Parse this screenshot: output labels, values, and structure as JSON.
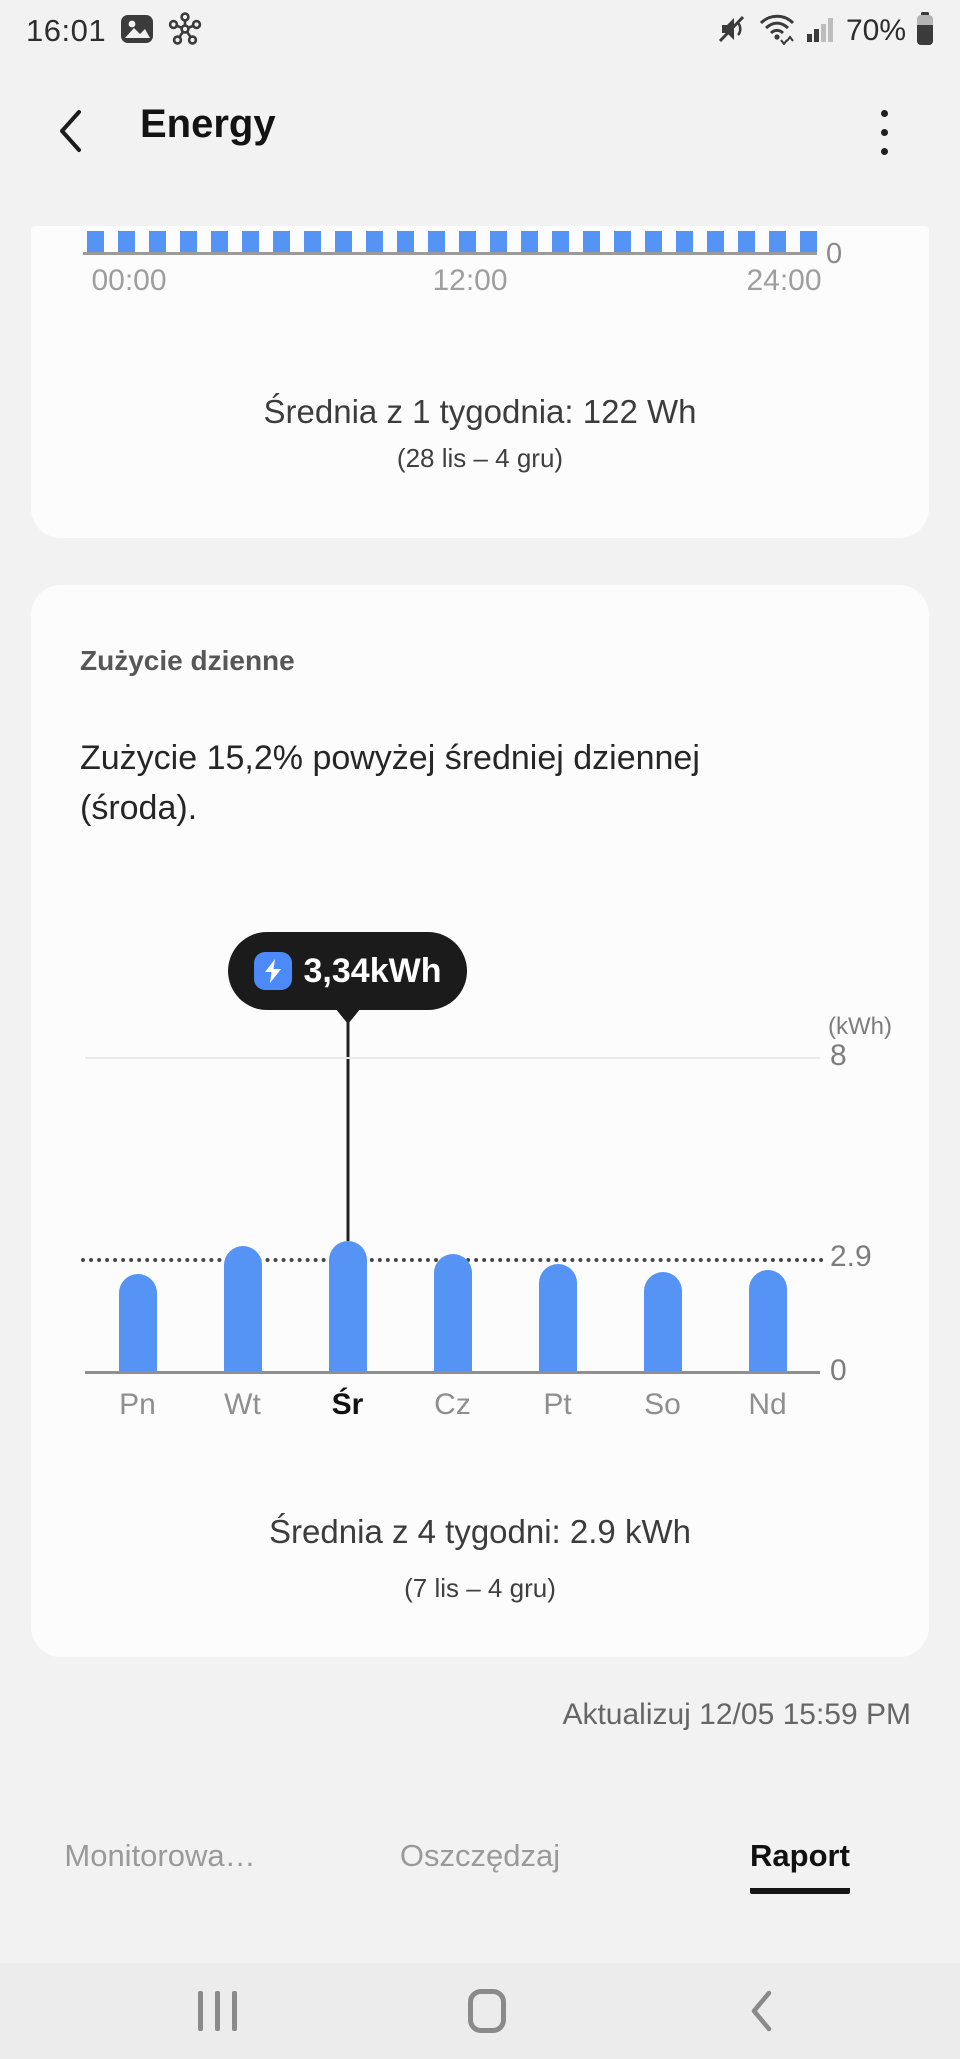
{
  "status_bar": {
    "time": "16:01",
    "battery_percent": "70%"
  },
  "header": {
    "title": "Energy"
  },
  "hourly": {
    "y_zero": "0",
    "x_ticks": [
      "00:00",
      "12:00",
      "24:00"
    ],
    "average_text": "Średnia z 1 tygodnia: 122 Wh",
    "date_range": "(28 lis – 4 gru)"
  },
  "daily": {
    "section_label": "Zużycie dzienne",
    "insight_line1": "Zużycie 15,2% powyżej średniej dziennej",
    "insight_line2": "(środa).",
    "tooltip_value": "3,34kWh",
    "y_unit": "(kWh)",
    "y_top": "8",
    "y_avg": "2.9",
    "y_zero": "0",
    "average_text": "Średnia z 4 tygodni: 2.9 kWh",
    "date_range": "(7 lis – 4 gru)"
  },
  "update_text": "Aktualizuj 12/05 15:59 PM",
  "tabs": [
    {
      "label": "Monitorowa…",
      "active": false
    },
    {
      "label": "Oszczędzaj",
      "active": false
    },
    {
      "label": "Raport",
      "active": true
    }
  ],
  "colors": {
    "bar_blue": "#5594f5",
    "tooltip_bg": "#1b1b1b",
    "tooltip_icon_blue": "#4b8af8",
    "card_bg": "#fcfcfc",
    "page_bg": "#f2f2f2"
  },
  "chart_data": [
    {
      "type": "bar",
      "title": "Zużycie godzinowe (górna część wykresu przycięta przez przewinięcie)",
      "bar_count": 24,
      "x_ticks": [
        "00:00",
        "12:00",
        "24:00"
      ],
      "y_ticks": [
        "0"
      ],
      "values_note": "24 jednakowe, przycięte słupki widoczne tuż nad osią 0",
      "average_label": "Średnia z 1 tygodnia: 122 Wh",
      "average_value_wh": 122,
      "date_range": "28 lis – 4 gru"
    },
    {
      "type": "bar",
      "title": "Zużycie dzienne",
      "categories": [
        "Pn",
        "Wt",
        "Śr",
        "Cz",
        "Pt",
        "So",
        "Nd"
      ],
      "values": [
        2.5,
        3.2,
        3.34,
        3.0,
        2.75,
        2.55,
        2.6
      ],
      "unit": "kWh",
      "ylabel": "(kWh)",
      "ylim": [
        0,
        8
      ],
      "gridline_value": 8,
      "average_line_value": 2.9,
      "selected_index": 2,
      "selected_value": 3.34,
      "selected_label": "3,34kWh",
      "average_label": "Średnia z 4 tygodni: 2.9 kWh",
      "date_range": "7 lis – 4 gru",
      "legend": "none",
      "grid": "single top gridline at 8, dotted average line at 2.9"
    }
  ]
}
